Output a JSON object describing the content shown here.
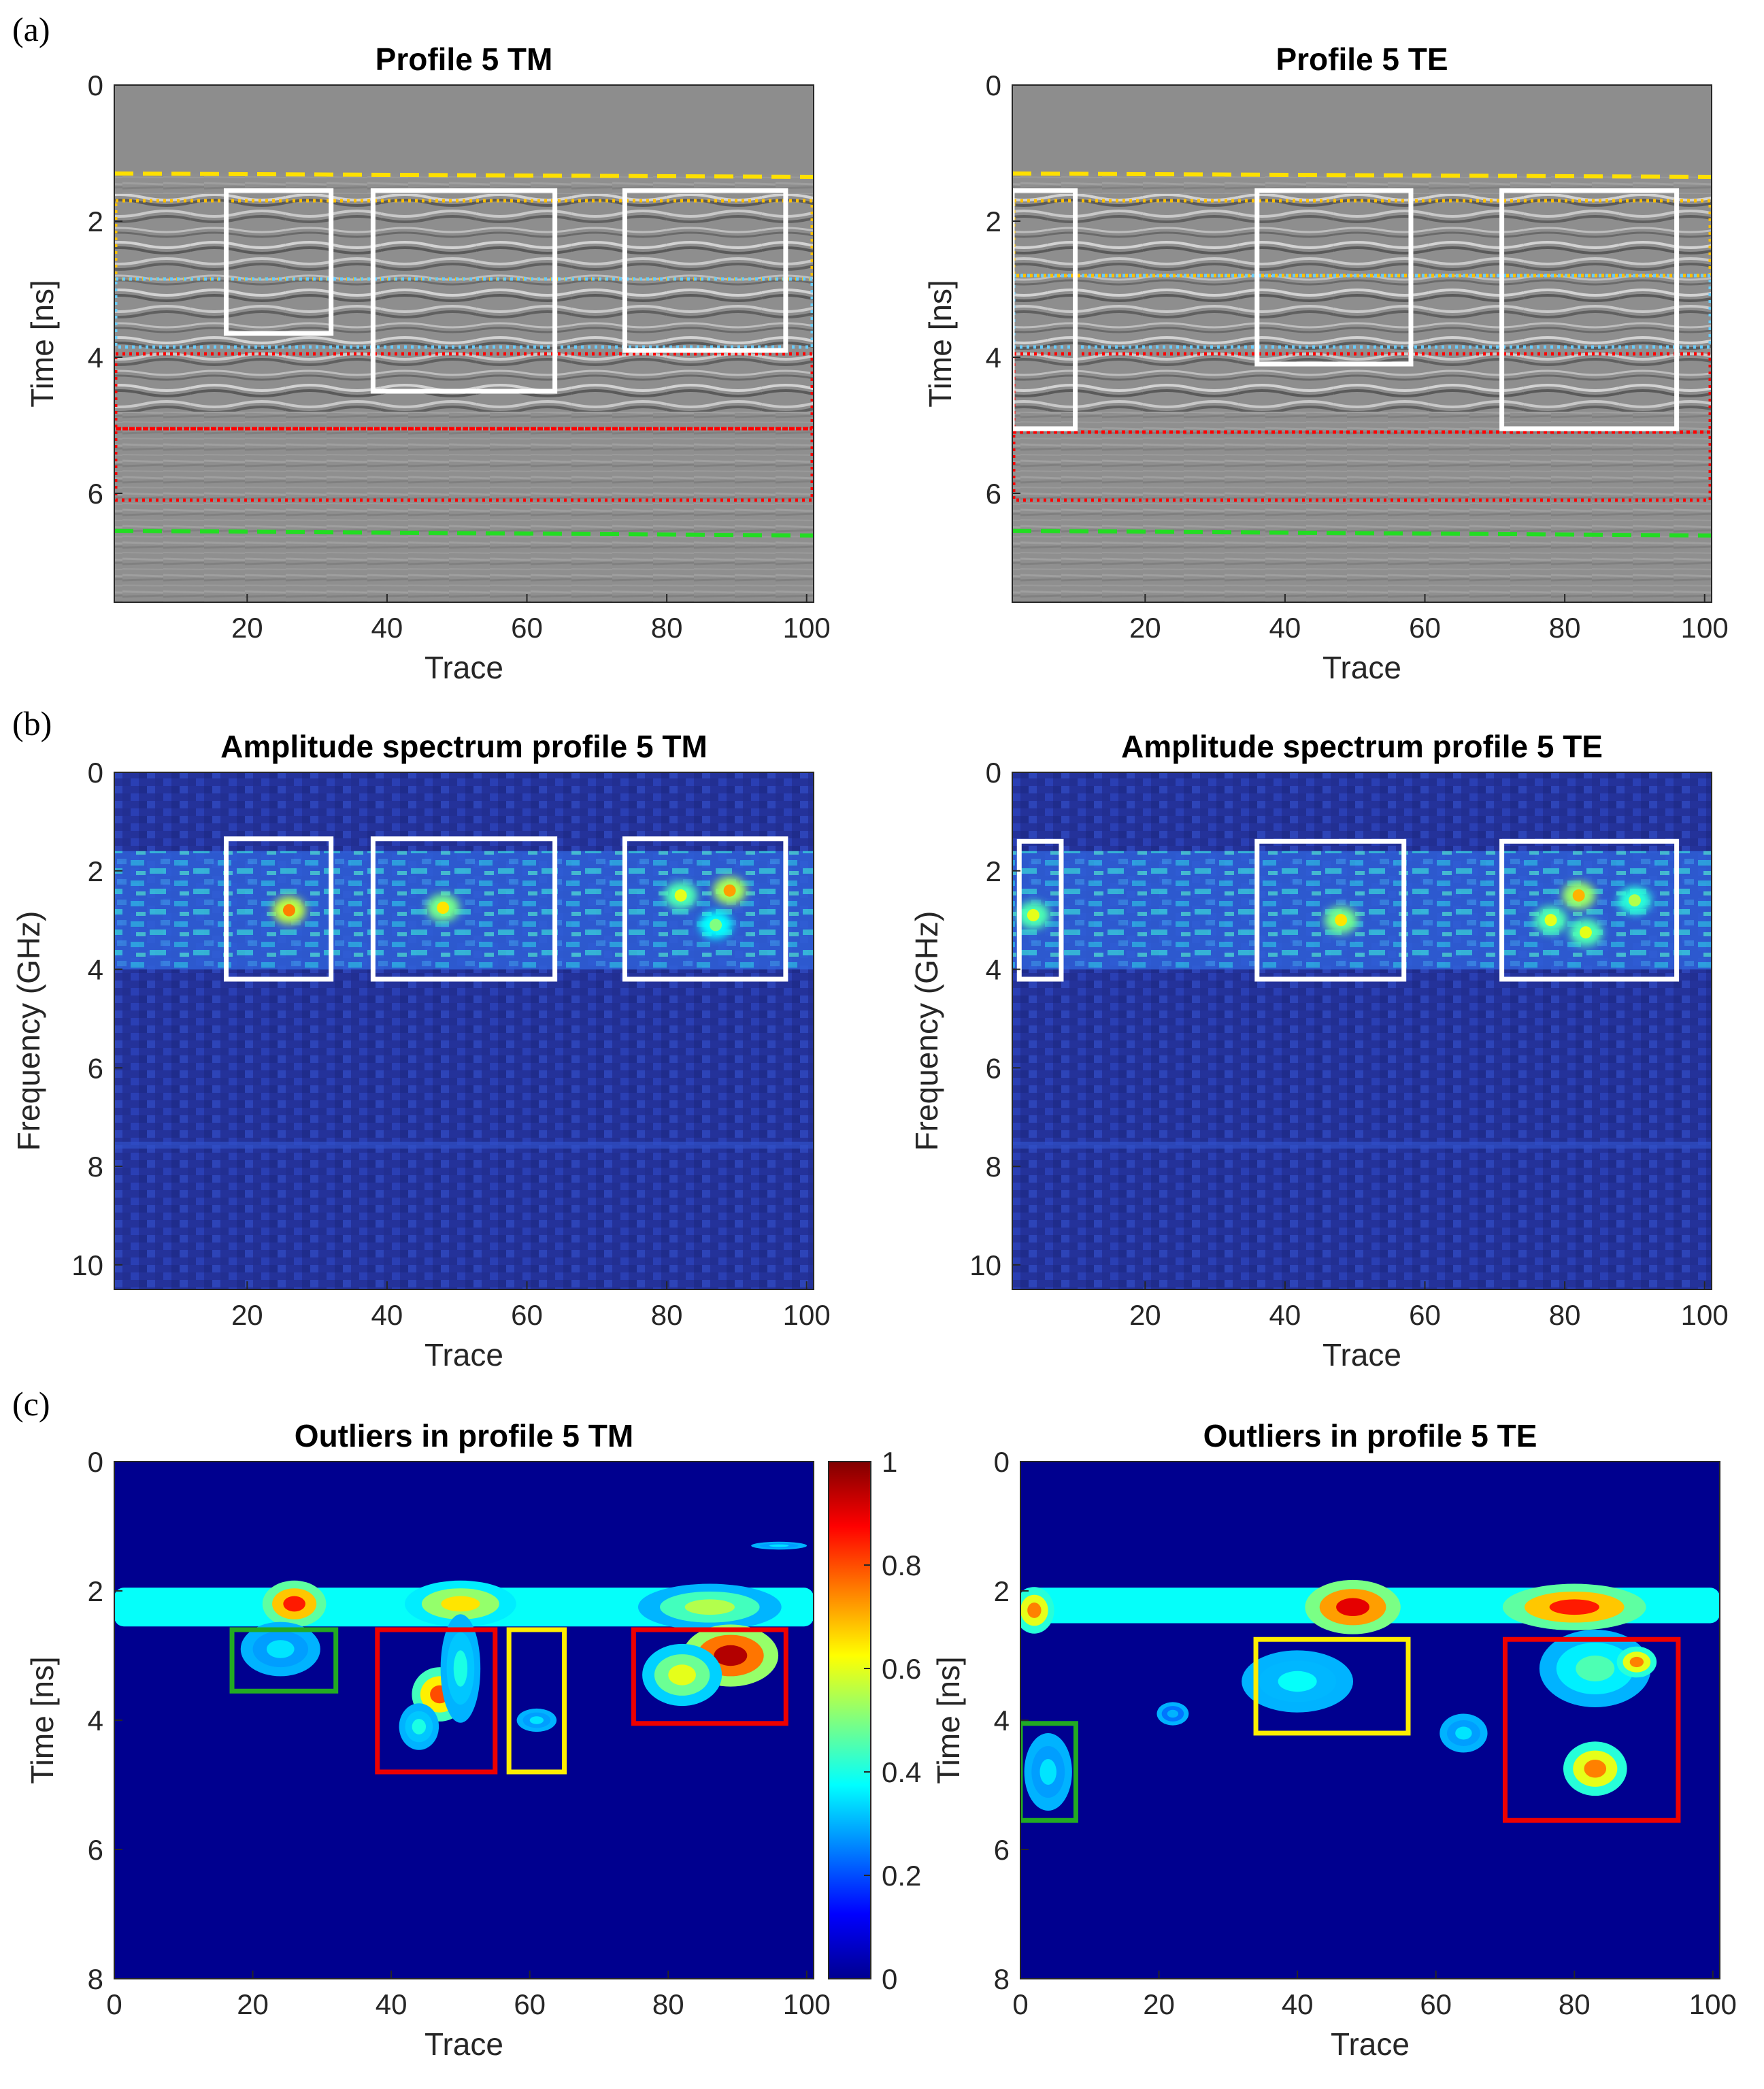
{
  "panels": [
    {
      "key": "a",
      "label": "(a)"
    },
    {
      "key": "b",
      "label": "(b)"
    },
    {
      "key": "c",
      "label": "(c)"
    }
  ],
  "chart_data": [
    {
      "id": "a-tm",
      "type": "heatmap",
      "render": "radargram",
      "title": "Profile 5 TM",
      "xlabel": "Trace",
      "ylabel": "Time [ns]",
      "xlim": [
        1,
        101
      ],
      "ylim": [
        0,
        7.6
      ],
      "xticks": [
        20,
        40,
        60,
        80,
        100
      ],
      "yticks": [
        0,
        2,
        4,
        6
      ],
      "colormap": "gray",
      "boxes": [
        {
          "x0": 17,
          "x1": 32,
          "y0": 1.55,
          "y1": 3.65,
          "color": "#ffffff"
        },
        {
          "x0": 38,
          "x1": 64,
          "y0": 1.55,
          "y1": 4.5,
          "color": "#ffffff"
        },
        {
          "x0": 74,
          "x1": 97,
          "y0": 1.55,
          "y1": 3.9,
          "color": "#ffffff"
        }
      ],
      "bands": [
        {
          "y0": 1.7,
          "y1": 2.85,
          "color": "#ffc000",
          "style": "dotted"
        },
        {
          "y0": 2.85,
          "y1": 3.85,
          "color": "#66ccff",
          "style": "dotted"
        },
        {
          "y0": 3.95,
          "y1": 5.05,
          "color": "#ff0000",
          "style": "dotted"
        },
        {
          "y0": 5.05,
          "y1": 6.1,
          "color": "#ff0000",
          "style": "dotted"
        }
      ],
      "lines": [
        {
          "y_start": 1.3,
          "y_end": 1.35,
          "color": "#ffe000",
          "style": "dashed"
        },
        {
          "y_start": 6.55,
          "y_end": 6.62,
          "color": "#22dd22",
          "style": "dashed"
        }
      ]
    },
    {
      "id": "a-te",
      "type": "heatmap",
      "render": "radargram",
      "title": "Profile 5 TE",
      "xlabel": "Trace",
      "ylabel": "Time [ns]",
      "xlim": [
        1,
        101
      ],
      "ylim": [
        0,
        7.6
      ],
      "xticks": [
        20,
        40,
        60,
        80,
        100
      ],
      "yticks": [
        0,
        2,
        4,
        6
      ],
      "colormap": "gray",
      "boxes": [
        {
          "x0": 1,
          "x1": 10,
          "y0": 1.55,
          "y1": 5.05,
          "color": "#ffffff"
        },
        {
          "x0": 36,
          "x1": 58,
          "y0": 1.55,
          "y1": 4.1,
          "color": "#ffffff"
        },
        {
          "x0": 71,
          "x1": 96,
          "y0": 1.55,
          "y1": 5.05,
          "color": "#ffffff"
        }
      ],
      "bands": [
        {
          "y0": 1.7,
          "y1": 2.8,
          "color": "#ffc000",
          "style": "dotted"
        },
        {
          "y0": 2.8,
          "y1": 3.85,
          "color": "#66ccff",
          "style": "dotted"
        },
        {
          "y0": 3.95,
          "y1": 5.1,
          "color": "#ff0000",
          "style": "dotted"
        },
        {
          "y0": 5.1,
          "y1": 6.1,
          "color": "#ff0000",
          "style": "dotted"
        }
      ],
      "lines": [
        {
          "y_start": 1.3,
          "y_end": 1.35,
          "color": "#ffe000",
          "style": "dashed"
        },
        {
          "y_start": 6.55,
          "y_end": 6.62,
          "color": "#22dd22",
          "style": "dashed"
        }
      ]
    },
    {
      "id": "b-tm",
      "type": "heatmap",
      "render": "spectrum",
      "title": "Amplitude spectrum profile 5 TM",
      "xlabel": "Trace",
      "ylabel": "Frequency (GHz)",
      "xlim": [
        1,
        101
      ],
      "ylim": [
        0,
        10.5
      ],
      "xticks": [
        20,
        40,
        60,
        80,
        100
      ],
      "yticks": [
        0,
        2,
        4,
        6,
        8,
        10
      ],
      "colormap": "jet",
      "boxes": [
        {
          "x0": 17,
          "x1": 32,
          "y0": 1.35,
          "y1": 4.2,
          "color": "#ffffff"
        },
        {
          "x0": 38,
          "x1": 64,
          "y0": 1.35,
          "y1": 4.2,
          "color": "#ffffff"
        },
        {
          "x0": 74,
          "x1": 97,
          "y0": 1.35,
          "y1": 4.2,
          "color": "#ffffff"
        }
      ],
      "hotspots": [
        {
          "x": 26,
          "y": 2.8,
          "v": 0.75
        },
        {
          "x": 48,
          "y": 2.75,
          "v": 0.65
        },
        {
          "x": 82,
          "y": 2.5,
          "v": 0.6
        },
        {
          "x": 89,
          "y": 2.4,
          "v": 0.72
        },
        {
          "x": 87,
          "y": 3.1,
          "v": 0.5
        }
      ]
    },
    {
      "id": "b-te",
      "type": "heatmap",
      "render": "spectrum",
      "title": "Amplitude spectrum profile 5 TE",
      "xlabel": "Trace",
      "ylabel": "Frequency (GHz)",
      "xlim": [
        1,
        101
      ],
      "ylim": [
        0,
        10.5
      ],
      "xticks": [
        20,
        40,
        60,
        80,
        100
      ],
      "yticks": [
        0,
        2,
        4,
        6,
        8,
        10
      ],
      "colormap": "jet",
      "boxes": [
        {
          "x0": 2,
          "x1": 8,
          "y0": 1.4,
          "y1": 4.2,
          "color": "#ffffff"
        },
        {
          "x0": 36,
          "x1": 57,
          "y0": 1.4,
          "y1": 4.2,
          "color": "#ffffff"
        },
        {
          "x0": 71,
          "x1": 96,
          "y0": 1.4,
          "y1": 4.2,
          "color": "#ffffff"
        }
      ],
      "hotspots": [
        {
          "x": 4,
          "y": 2.9,
          "v": 0.6
        },
        {
          "x": 48,
          "y": 3.0,
          "v": 0.65
        },
        {
          "x": 82,
          "y": 2.5,
          "v": 0.7
        },
        {
          "x": 78,
          "y": 3.0,
          "v": 0.6
        },
        {
          "x": 83,
          "y": 3.25,
          "v": 0.6
        },
        {
          "x": 90,
          "y": 2.6,
          "v": 0.55
        }
      ]
    },
    {
      "id": "c-tm",
      "type": "heatmap",
      "render": "outliers",
      "title": "Outliers in profile 5 TM",
      "xlabel": "Trace",
      "ylabel": "Time [ns]",
      "xlim": [
        0,
        101
      ],
      "ylim": [
        0,
        8
      ],
      "xticks": [
        0,
        20,
        40,
        60,
        80,
        100
      ],
      "yticks": [
        0,
        2,
        4,
        6,
        8
      ],
      "colormap": "jet",
      "colorbar": {
        "ticks": [
          "0",
          "0.2",
          "0.4",
          "0.6",
          "0.8",
          "1"
        ],
        "min": 0,
        "max": 1
      },
      "boxes": [
        {
          "x0": 17,
          "x1": 32,
          "y0": 2.6,
          "y1": 3.55,
          "color": "#22aa22"
        },
        {
          "x0": 38,
          "x1": 55,
          "y0": 2.6,
          "y1": 4.8,
          "color": "#ee0000"
        },
        {
          "x0": 57,
          "x1": 65,
          "y0": 2.6,
          "y1": 4.8,
          "color": "#ffee00"
        },
        {
          "x0": 75,
          "x1": 97,
          "y0": 2.6,
          "y1": 4.05,
          "color": "#ee0000"
        }
      ],
      "band": {
        "y0": 1.95,
        "y1": 2.55,
        "v": 0.38
      },
      "blobs": [
        {
          "x": 26,
          "y": 2.2,
          "rx": 4,
          "ry": 0.3,
          "v": 0.85
        },
        {
          "x": 50,
          "y": 2.2,
          "rx": 7,
          "ry": 0.3,
          "v": 0.65
        },
        {
          "x": 86,
          "y": 2.25,
          "rx": 9,
          "ry": 0.3,
          "v": 0.55
        },
        {
          "x": 47,
          "y": 3.6,
          "rx": 3.5,
          "ry": 0.35,
          "v": 0.8
        },
        {
          "x": 50,
          "y": 3.2,
          "rx": 2.5,
          "ry": 0.7,
          "v": 0.4
        },
        {
          "x": 44,
          "y": 4.1,
          "rx": 2.5,
          "ry": 0.3,
          "v": 0.4
        },
        {
          "x": 89,
          "y": 3.0,
          "rx": 6,
          "ry": 0.4,
          "v": 0.95
        },
        {
          "x": 82,
          "y": 3.3,
          "rx": 5,
          "ry": 0.4,
          "v": 0.6
        },
        {
          "x": 24,
          "y": 2.9,
          "rx": 5,
          "ry": 0.35,
          "v": 0.35
        },
        {
          "x": 61,
          "y": 4.0,
          "rx": 2.5,
          "ry": 0.15,
          "v": 0.35
        },
        {
          "x": 96,
          "y": 1.3,
          "rx": 3.5,
          "ry": 0.05,
          "v": 0.35
        }
      ]
    },
    {
      "id": "c-te",
      "type": "heatmap",
      "render": "outliers",
      "title": "Outliers in profile 5 TE",
      "xlabel": "Trace",
      "ylabel": "Time [ns]",
      "xlim": [
        0,
        101
      ],
      "ylim": [
        0,
        8
      ],
      "xticks": [
        0,
        20,
        40,
        60,
        80,
        100
      ],
      "yticks": [
        0,
        2,
        4,
        6,
        8
      ],
      "colormap": "jet",
      "boxes": [
        {
          "x0": 0,
          "x1": 8,
          "y0": 4.05,
          "y1": 5.55,
          "color": "#22aa22"
        },
        {
          "x0": 34,
          "x1": 56,
          "y0": 2.75,
          "y1": 4.2,
          "color": "#ffee00"
        },
        {
          "x0": 70,
          "x1": 95,
          "y0": 2.75,
          "y1": 5.55,
          "color": "#ee0000"
        }
      ],
      "band": {
        "y0": 1.95,
        "y1": 2.5,
        "v": 0.38
      },
      "blobs": [
        {
          "x": 2,
          "y": 2.3,
          "rx": 2.5,
          "ry": 0.3,
          "v": 0.75
        },
        {
          "x": 48,
          "y": 2.25,
          "rx": 6,
          "ry": 0.35,
          "v": 0.9
        },
        {
          "x": 80,
          "y": 2.25,
          "rx": 9,
          "ry": 0.3,
          "v": 0.85
        },
        {
          "x": 40,
          "y": 3.4,
          "rx": 7,
          "ry": 0.4,
          "v": 0.38
        },
        {
          "x": 83,
          "y": 3.2,
          "rx": 7,
          "ry": 0.5,
          "v": 0.45
        },
        {
          "x": 89,
          "y": 3.1,
          "rx": 2.5,
          "ry": 0.2,
          "v": 0.75
        },
        {
          "x": 83,
          "y": 4.75,
          "rx": 4,
          "ry": 0.35,
          "v": 0.75
        },
        {
          "x": 4,
          "y": 4.8,
          "rx": 3,
          "ry": 0.5,
          "v": 0.35
        },
        {
          "x": 64,
          "y": 4.2,
          "rx": 3,
          "ry": 0.25,
          "v": 0.35
        },
        {
          "x": 22,
          "y": 3.9,
          "rx": 2,
          "ry": 0.15,
          "v": 0.3
        }
      ]
    }
  ]
}
